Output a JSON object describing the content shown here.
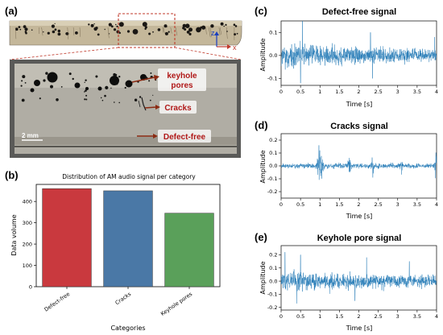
{
  "panels": {
    "a": "(a)",
    "b": "(b)",
    "c": "(c)",
    "d": "(d)",
    "e": "(e)"
  },
  "photo": {
    "axis_z": "z",
    "axis_x": "x",
    "annotations": {
      "keyhole_line1": "keyhole",
      "keyhole_line2": "pores",
      "cracks": "Cracks",
      "defect_free": "Defect-free"
    },
    "scale_bar": "2 mm",
    "colors": {
      "metal": "#c4b79a",
      "zoom": "#a9a69d",
      "box": "#c0392b",
      "axis": "#1a3fbf"
    }
  },
  "chart_data": [
    {
      "id": "b",
      "type": "bar",
      "title": "Distribution of AM audio signal per category",
      "xlabel": "Categories",
      "ylabel": "Data volume",
      "categories": [
        "Defect-free",
        "Cracks",
        "Keyhole pores"
      ],
      "values": [
        460,
        450,
        345
      ],
      "colors": [
        "#c9393e",
        "#4a78a6",
        "#5aa05a"
      ],
      "ylim": [
        0,
        480
      ],
      "yticks": [
        0,
        100,
        200,
        300,
        400
      ],
      "grid": false
    },
    {
      "id": "c",
      "type": "line",
      "title": "Defect-free signal",
      "xlabel": "Time [s]",
      "ylabel": "Amplitude",
      "xlim": [
        0,
        4
      ],
      "ylim": [
        -0.13,
        0.15
      ],
      "xticks": [
        "0",
        "0.5",
        "1",
        "1.5",
        "2",
        "2.5",
        "3",
        "3.5",
        "4"
      ],
      "yticks": [
        -0.1,
        0.0,
        0.1
      ],
      "ytick_labels": [
        "-0.1",
        "0.0",
        "0.1"
      ],
      "envelope": {
        "t": [
          0,
          0.5,
          1,
          1.5,
          2,
          2.5,
          3,
          3.5,
          4
        ],
        "amp": [
          0.07,
          0.07,
          0.06,
          0.055,
          0.045,
          0.045,
          0.04,
          0.035,
          0.03
        ],
        "spikes": [
          [
            0.55,
            0.15
          ],
          [
            0.5,
            -0.12
          ],
          [
            2.3,
            0.1
          ],
          [
            2.35,
            -0.1
          ],
          [
            3.95,
            0.08
          ]
        ]
      },
      "color": "#1f77b4"
    },
    {
      "id": "d",
      "type": "line",
      "title": "Cracks signal",
      "xlabel": "Time [s]",
      "ylabel": "Amplitude",
      "xlim": [
        0,
        4
      ],
      "ylim": [
        -0.25,
        0.25
      ],
      "xticks": [
        "0",
        "0.5",
        "1",
        "1.5",
        "2",
        "2.5",
        "3",
        "3.5",
        "4"
      ],
      "yticks": [
        -0.2,
        -0.1,
        0.0,
        0.1,
        0.2
      ],
      "ytick_labels": [
        "-0.2",
        "-0.1",
        "0.0",
        "0.1",
        "0.2"
      ],
      "envelope": {
        "base_amp": 0.025,
        "bursts": [
          [
            1.0,
            0.22,
            0.08
          ],
          [
            1.75,
            0.1,
            0.05
          ],
          [
            2.35,
            0.11,
            0.06
          ],
          [
            3.1,
            0.06,
            0.03
          ],
          [
            4.0,
            0.2,
            0.05
          ]
        ]
      },
      "color": "#1f77b4"
    },
    {
      "id": "e",
      "type": "line",
      "title": "Keyhole pore signal",
      "xlabel": "Time [s]",
      "ylabel": "Amplitude",
      "xlim": [
        0,
        4
      ],
      "ylim": [
        -0.22,
        0.27
      ],
      "xticks": [
        "0",
        "0.5",
        "1",
        "1.5",
        "2",
        "2.5",
        "3",
        "3.5",
        "4"
      ],
      "yticks": [
        -0.2,
        -0.1,
        0.0,
        0.1,
        0.2
      ],
      "ytick_labels": [
        "-0.2",
        "-0.1",
        "0.0",
        "0.1",
        "0.2"
      ],
      "envelope": {
        "t": [
          0,
          0.5,
          1,
          1.5,
          2,
          2.5,
          3,
          3.5,
          4
        ],
        "amp": [
          0.09,
          0.09,
          0.08,
          0.08,
          0.075,
          0.07,
          0.065,
          0.06,
          0.06
        ],
        "spikes": [
          [
            0.1,
            0.22
          ],
          [
            0.5,
            0.2
          ],
          [
            2.2,
            0.18
          ],
          [
            0.4,
            -0.17
          ],
          [
            1.9,
            -0.15
          ],
          [
            3.3,
            0.15
          ]
        ]
      },
      "color": "#1f77b4"
    }
  ]
}
